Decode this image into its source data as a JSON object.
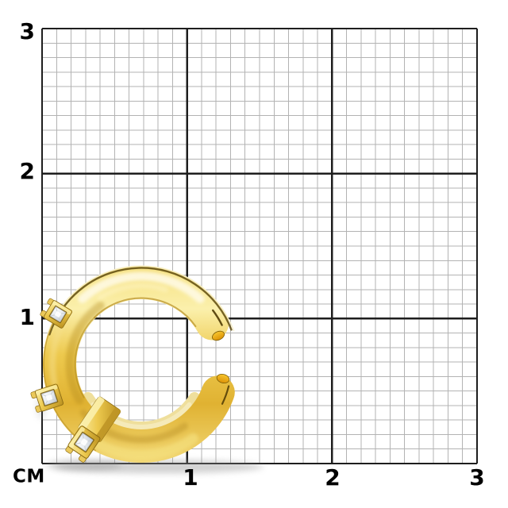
{
  "title": "Gold open ring photographed on a centimeter measurement grid",
  "ruler": {
    "unit_label": "CM",
    "x_tick_labels": [
      "1",
      "2",
      "3"
    ],
    "y_tick_labels": [
      "3",
      "2",
      "1"
    ],
    "range_cm": [
      0,
      3
    ],
    "minor_divisions_per_cm": 10,
    "colors": {
      "background": "#ffffff",
      "minor_line": "#b3b3b3",
      "major_line": "#1e1e1e",
      "label": "#000000"
    }
  },
  "subject": {
    "name": "open-gold-ring-ear-cuff",
    "description": "Yellow-gold open C-shaped ring (ear cuff) with three square clear stones in prong settings along its left side; the opening of the C faces right; soft shadow beneath the ring.",
    "stone_count": 3,
    "approx_outer_diameter_cm": 1.35,
    "approx_band_width_cm": 0.22,
    "opening_direction": "right",
    "colors": {
      "gold_pale": "#F5DF7E",
      "gold_light": "#FBF0AC",
      "gold_mid": "#EDC94E",
      "gold_deep": "#E0B232",
      "gold_bottom": "#F2D876",
      "gold_edge_dark": "#5E4A0E",
      "gold_edge_cream": "#F7EFC9",
      "inner_wall": "#EFDF9C",
      "white_rim": "#FAFAF4",
      "tip_amber_light": "#F7C62E",
      "tip_amber_dark": "#DC9206",
      "stone_white": "#FFFFFF",
      "stone_shade": "#C7CED6",
      "stone_facet": "#C6CCD2",
      "prong_gold": "#EBC95B",
      "setting_dark": "#7D5F10",
      "shadow": "#8F8F8F"
    }
  }
}
